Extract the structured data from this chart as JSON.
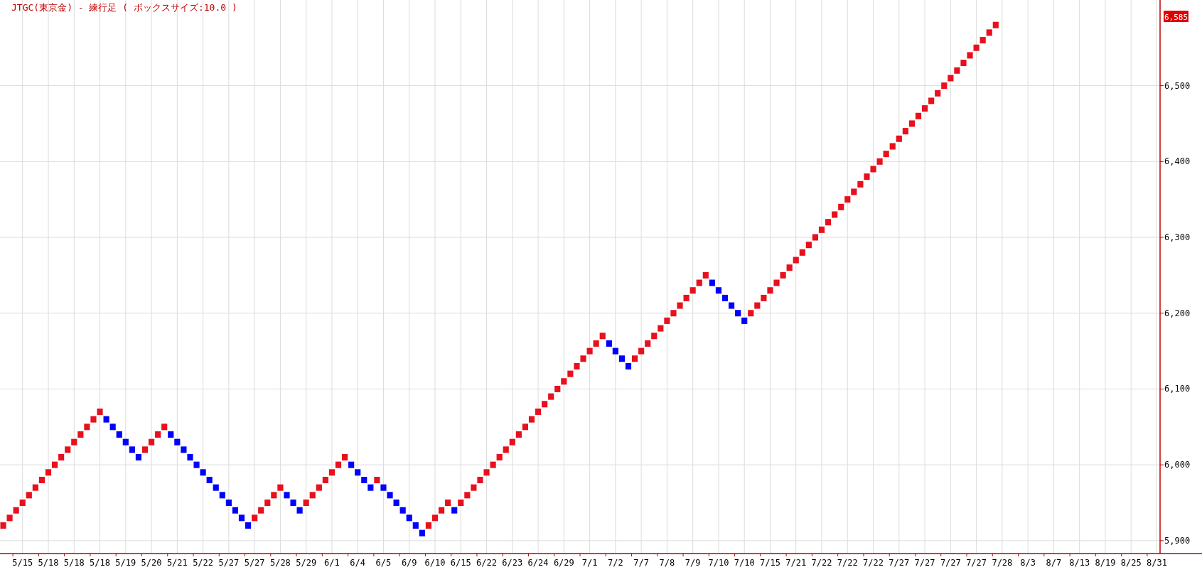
{
  "chart_data": {
    "type": "scatter",
    "title": "JTGC(東京金) - 練行足 ( ボックスサイズ:10.0 )",
    "categories": [
      null,
      null,
      null,
      "5/15",
      null,
      null,
      null,
      "5/18",
      null,
      null,
      null,
      "5/18",
      null,
      null,
      null,
      "5/18",
      null,
      null,
      null,
      "5/19",
      null,
      null,
      null,
      "5/20",
      null,
      null,
      null,
      "5/21",
      null,
      null,
      null,
      "5/22",
      null,
      null,
      null,
      "5/27",
      null,
      null,
      null,
      "5/27",
      null,
      null,
      null,
      "5/28",
      null,
      null,
      null,
      "5/29",
      null,
      null,
      null,
      "6/1",
      null,
      null,
      null,
      "6/4",
      null,
      null,
      null,
      "6/5",
      null,
      null,
      null,
      "6/9",
      null,
      null,
      null,
      "6/10",
      null,
      null,
      null,
      "6/15",
      null,
      null,
      null,
      "6/22",
      null,
      null,
      null,
      "6/23",
      null,
      null,
      null,
      "6/24",
      null,
      null,
      null,
      "6/29",
      null,
      null,
      null,
      "7/1",
      null,
      null,
      null,
      "7/2",
      null,
      null,
      null,
      "7/7",
      null,
      null,
      null,
      "7/8",
      null,
      null,
      null,
      "7/9",
      null,
      null,
      null,
      "7/10",
      null,
      null,
      null,
      "7/10",
      null,
      null,
      null,
      "7/15",
      null,
      null,
      null,
      "7/21",
      null,
      null,
      null,
      "7/22",
      null,
      null,
      null,
      "7/22",
      null,
      null,
      null,
      "7/22",
      null,
      null,
      null,
      "7/27",
      null,
      null,
      null,
      "7/27",
      null,
      null,
      null,
      "7/27",
      null,
      null,
      null,
      "7/27",
      null,
      null,
      null,
      "7/28",
      null,
      null,
      null,
      "8/3",
      null,
      null,
      null,
      "8/7",
      null,
      null,
      null,
      "8/13",
      null,
      null,
      null,
      "8/19",
      null,
      null,
      null,
      "8/25",
      null,
      null,
      null,
      "8/31"
    ],
    "series": [
      {
        "color": "#e8101c",
        "values": [
          5920,
          5930,
          5940,
          5950,
          5960,
          5970,
          5980,
          5990,
          6000,
          6010,
          6020,
          6030,
          6040,
          6050,
          6060,
          6070,
          null,
          null,
          null,
          null,
          null,
          null,
          6020,
          6030,
          6040,
          6050,
          null,
          null,
          null,
          null,
          null,
          null,
          null,
          null,
          null,
          null,
          null,
          null,
          null,
          5930,
          5940,
          5950,
          5960,
          5970,
          null,
          null,
          null,
          5950,
          5960,
          5970,
          5980,
          5990,
          6000,
          6010,
          null,
          null,
          null,
          null,
          5980,
          null,
          null,
          null,
          null,
          null,
          null,
          null,
          5920,
          5930,
          5940,
          5950,
          null,
          5950,
          5960,
          5970,
          5980,
          5990,
          6000,
          6010,
          6020,
          6030,
          6040,
          6050,
          6060,
          6070,
          6080,
          6090,
          6100,
          6110,
          6120,
          6130,
          6140,
          6150,
          6160,
          6170,
          null,
          null,
          null,
          null,
          6140,
          6150,
          6160,
          6170,
          6180,
          6190,
          6200,
          6210,
          6220,
          6230,
          6240,
          6250,
          null,
          null,
          null,
          null,
          null,
          null,
          6200,
          6210,
          6220,
          6230,
          6240,
          6250,
          6260,
          6270,
          6280,
          6290,
          6300,
          6310,
          6320,
          6330,
          6340,
          6350,
          6360,
          6370,
          6380,
          6390,
          6400,
          6410,
          6420,
          6430,
          6440,
          6450,
          6460,
          6470,
          6480,
          6490,
          6500,
          6510,
          6520,
          6530,
          6540,
          6550,
          6560,
          6570,
          6580,
          null,
          null,
          null,
          null,
          null,
          null,
          null,
          null,
          null,
          null,
          null,
          null,
          null,
          null,
          null,
          null,
          null,
          null,
          null,
          null,
          null,
          null,
          null,
          null,
          null
        ]
      },
      {
        "color": "#0000ff",
        "values": [
          null,
          null,
          null,
          null,
          null,
          null,
          null,
          null,
          null,
          null,
          null,
          null,
          null,
          null,
          null,
          null,
          6060,
          6050,
          6040,
          6030,
          6020,
          6010,
          null,
          null,
          null,
          null,
          6040,
          6030,
          6020,
          6010,
          6000,
          5990,
          5980,
          5970,
          5960,
          5950,
          5940,
          5930,
          5920,
          null,
          null,
          null,
          null,
          null,
          5960,
          5950,
          5940,
          null,
          null,
          null,
          null,
          null,
          null,
          null,
          6000,
          5990,
          5980,
          5970,
          null,
          5970,
          5960,
          5950,
          5940,
          5930,
          5920,
          5910,
          null,
          null,
          null,
          null,
          5940,
          null,
          null,
          null,
          null,
          null,
          null,
          null,
          null,
          null,
          null,
          null,
          null,
          null,
          null,
          null,
          null,
          null,
          null,
          null,
          null,
          null,
          null,
          null,
          6160,
          6150,
          6140,
          6130,
          null,
          null,
          null,
          null,
          null,
          null,
          null,
          null,
          null,
          null,
          null,
          null,
          6240,
          6230,
          6220,
          6210,
          6200,
          6190,
          null,
          null,
          null,
          null,
          null,
          null,
          null,
          null,
          null,
          null,
          null,
          null,
          null,
          null,
          null,
          null,
          null,
          null,
          null,
          null,
          null,
          null,
          null,
          null,
          null,
          null,
          null,
          null,
          null,
          null,
          null,
          null,
          null,
          null,
          null,
          null,
          null,
          null,
          null,
          null,
          null,
          null,
          null,
          null,
          null,
          null,
          null,
          null,
          null,
          null,
          null,
          null,
          null,
          null,
          null,
          null,
          null,
          null,
          null,
          null,
          null,
          null,
          null,
          null
        ]
      }
    ],
    "ylim": [
      5883,
      6613
    ],
    "yticks": [
      {
        "value": 5900,
        "label": "5,900"
      },
      {
        "value": 6000,
        "label": "6,000"
      },
      {
        "value": 6100,
        "label": "6,100"
      },
      {
        "value": 6200,
        "label": "6,200"
      },
      {
        "value": 6300,
        "label": "6,300"
      },
      {
        "value": 6400,
        "label": "6,400"
      },
      {
        "value": 6500,
        "label": "6,500"
      }
    ],
    "grid": true,
    "marker": "square",
    "annotations": [
      "6,585"
    ]
  }
}
